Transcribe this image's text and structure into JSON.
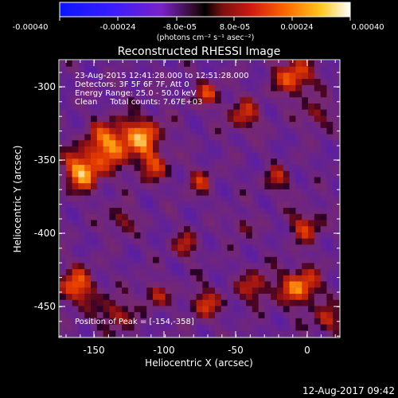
{
  "colorbar": {
    "tick_labels": [
      "-0.00040",
      "-0.00024",
      "-8.0e-05",
      "8.0e-05",
      "0.00024",
      "0.00040"
    ],
    "units_label": "(photons cm⁻² s⁻¹ asec⁻²)"
  },
  "image": {
    "title": "Reconstructed RHESSI Image",
    "info_lines": [
      "23-Aug-2015 12:41:28.000 to 12:51:28.000",
      "Detectors: 3F 5F 6F 7F, Att 0",
      "Energy Range: 25.0 - 50.0 keV",
      "Clean     Total counts: 7.67E+03"
    ],
    "peak_text": "Position of Peak = [-154,-358]",
    "x_axis_label": "Heliocentric X (arcsec)",
    "y_axis_label": "Heliocentric Y (arcsec)",
    "x_tick_labels": [
      "-150",
      "-100",
      "-50",
      "0"
    ],
    "y_tick_labels": [
      "-300",
      "-350",
      "-400",
      "-450"
    ]
  },
  "footer": {
    "timestamp": "12-Aug-2017 09:42"
  }
}
